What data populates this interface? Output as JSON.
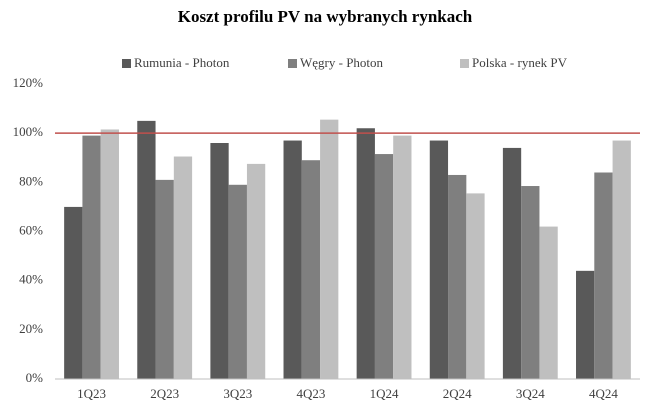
{
  "chart_data": {
    "type": "bar",
    "title": "Koszt profilu PV na wybranych rynkach",
    "categories": [
      "1Q23",
      "2Q23",
      "3Q23",
      "4Q23",
      "1Q24",
      "2Q24",
      "3Q24",
      "4Q24"
    ],
    "series": [
      {
        "name": "Rumunia - Photon",
        "color": "#595959",
        "values": [
          70,
          105,
          96,
          97,
          102,
          97,
          94,
          44
        ]
      },
      {
        "name": "Węgry - Photon",
        "color": "#7f7f7f",
        "values": [
          99,
          81,
          79,
          89,
          91.5,
          83,
          78.5,
          84
        ]
      },
      {
        "name": "Polska - rynek PV",
        "color": "#bfbfbf",
        "values": [
          101.5,
          90.5,
          87.5,
          105.5,
          99,
          75.5,
          62,
          97
        ]
      }
    ],
    "ylim": [
      0,
      120
    ],
    "yticks": [
      {
        "value": 0,
        "label": "0%"
      },
      {
        "value": 20,
        "label": "20%"
      },
      {
        "value": 40,
        "label": "40%"
      },
      {
        "value": 60,
        "label": "60%"
      },
      {
        "value": 80,
        "label": "80%"
      },
      {
        "value": 100,
        "label": "100%"
      },
      {
        "value": 120,
        "label": "120%"
      }
    ],
    "reference_line": {
      "value": 100,
      "color": "#c0504d"
    },
    "legend": "top"
  }
}
